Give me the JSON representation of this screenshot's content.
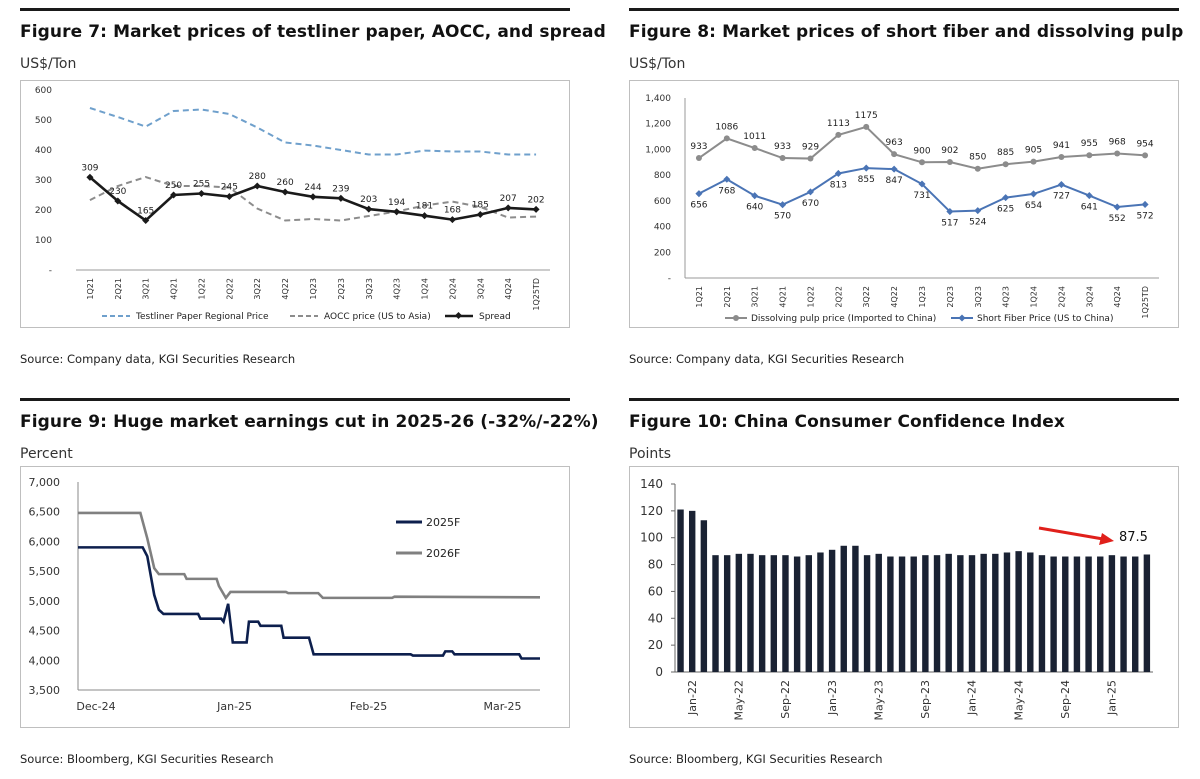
{
  "figures": [
    {
      "title": "Figure 7: Market prices of testliner paper, AOCC, and spread",
      "unit": "US$/Ton",
      "source": "Source: Company data, KGI Securities Research"
    },
    {
      "title": "Figure 8: Market prices of short fiber and dissolving pulp",
      "unit": "US$/Ton",
      "source": "Source: Company data, KGI Securities Research"
    },
    {
      "title": "Figure 9: Huge market earnings cut in 2025-26 (-32%/-22%)",
      "unit": "Percent",
      "source": "Source: Bloomberg, KGI Securities Research"
    },
    {
      "title": "Figure 10: China Consumer Confidence Index",
      "unit": "Points",
      "source": "Source: Bloomberg, KGI Securities Research"
    }
  ],
  "chart_data": [
    {
      "type": "line",
      "title": "Figure 7: Market prices of testliner paper, AOCC, and spread",
      "ylabel": "US$/Ton",
      "ylim": [
        0,
        600
      ],
      "yticks": [
        "-",
        "100",
        "200",
        "300",
        "400",
        "500",
        "600"
      ],
      "categories": [
        "1Q21",
        "2Q21",
        "3Q21",
        "4Q21",
        "1Q22",
        "2Q22",
        "3Q22",
        "4Q22",
        "1Q23",
        "2Q23",
        "3Q23",
        "4Q23",
        "1Q24",
        "2Q24",
        "3Q24",
        "4Q24",
        "1Q25TD"
      ],
      "series": [
        {
          "name": "Testliner Paper Regional Price",
          "color": "#6fa0cc",
          "values": [
            540,
            510,
            478,
            530,
            535,
            520,
            475,
            425,
            415,
            400,
            385,
            385,
            398,
            395,
            395,
            385,
            385
          ]
        },
        {
          "name": "AOCC price (US to Asia)",
          "color": "#8c8c8c",
          "values": [
            233,
            280,
            310,
            280,
            280,
            275,
            205,
            165,
            170,
            165,
            180,
            195,
            215,
            228,
            210,
            175,
            178
          ]
        },
        {
          "name": "Spread",
          "color": "#1a1a1a",
          "values": [
            309,
            230,
            165,
            250,
            255,
            245,
            280,
            260,
            244,
            239,
            203,
            194,
            181,
            168,
            185,
            207,
            202
          ]
        }
      ],
      "labels": [
        "309",
        "230",
        "165",
        "250",
        "255",
        "245",
        "280",
        "260",
        "244",
        "239",
        "203",
        "194",
        "181",
        "168",
        "185",
        "207",
        "202"
      ],
      "legend": "bottom"
    },
    {
      "type": "line",
      "title": "Figure 8: Market prices of short fiber and dissolving pulp",
      "ylabel": "US$/Ton",
      "ylim": [
        0,
        1400
      ],
      "yticks": [
        "-",
        "200",
        "400",
        "600",
        "800",
        "1,000",
        "1,200",
        "1,400"
      ],
      "categories": [
        "1Q21",
        "2Q21",
        "3Q21",
        "4Q21",
        "1Q22",
        "2Q22",
        "3Q22",
        "4Q22",
        "1Q23",
        "2Q23",
        "3Q23",
        "4Q23",
        "1Q24",
        "2Q24",
        "3Q24",
        "4Q24",
        "1Q25TD"
      ],
      "series": [
        {
          "name": "Dissolving pulp price (Imported to China)",
          "color": "#8c8c8c",
          "values": [
            933,
            1086,
            1011,
            933,
            929,
            1113,
            1175,
            963,
            900,
            902,
            850,
            885,
            905,
            941,
            955,
            968,
            954
          ],
          "labels": [
            "933",
            "1086",
            "1011",
            "933",
            "929",
            "1113",
            "1175",
            "963",
            "900",
            "902",
            "850",
            "885",
            "905",
            "941",
            "955",
            "968",
            "954"
          ]
        },
        {
          "name": "Short Fiber Price (US to China)",
          "color": "#4a74b5",
          "values": [
            656,
            768,
            640,
            570,
            670,
            813,
            855,
            847,
            731,
            517,
            524,
            625,
            654,
            727,
            641,
            552,
            572
          ],
          "labels": [
            "656",
            "768",
            "640",
            "570",
            "670",
            "813",
            "855",
            "847",
            "731",
            "517",
            "524",
            "625",
            "654",
            "727",
            "641",
            "552",
            "572"
          ]
        }
      ],
      "legend": "bottom"
    },
    {
      "type": "line",
      "title": "Figure 9: Huge market earnings cut in 2025-26 (-32%/-22%)",
      "ylabel": "Percent",
      "ylim": [
        3500,
        7000
      ],
      "yticks": [
        "3,500",
        "4,000",
        "4,500",
        "5,000",
        "5,500",
        "6,000",
        "6,500",
        "7,000"
      ],
      "xticks": [
        "Dec-24",
        "Jan-25",
        "Feb-25",
        "Mar-25"
      ],
      "x_positions": [
        0,
        0.3,
        0.59,
        0.88
      ],
      "series": [
        {
          "name": "2025F",
          "color": "#0d1f4d",
          "points": [
            [
              0,
              5900
            ],
            [
              0.14,
              5900
            ],
            [
              0.15,
              5750
            ],
            [
              0.165,
              5100
            ],
            [
              0.175,
              4850
            ],
            [
              0.185,
              4780
            ],
            [
              0.26,
              4780
            ],
            [
              0.265,
              4700
            ],
            [
              0.31,
              4700
            ],
            [
              0.315,
              4650
            ],
            [
              0.325,
              4950
            ],
            [
              0.335,
              4300
            ],
            [
              0.365,
              4300
            ],
            [
              0.37,
              4650
            ],
            [
              0.39,
              4650
            ],
            [
              0.395,
              4580
            ],
            [
              0.44,
              4580
            ],
            [
              0.445,
              4380
            ],
            [
              0.5,
              4380
            ],
            [
              0.51,
              4100
            ],
            [
              0.72,
              4100
            ],
            [
              0.725,
              4080
            ],
            [
              0.79,
              4080
            ],
            [
              0.795,
              4150
            ],
            [
              0.81,
              4150
            ],
            [
              0.815,
              4100
            ],
            [
              0.955,
              4100
            ],
            [
              0.96,
              4030
            ],
            [
              1.0,
              4030
            ]
          ]
        },
        {
          "name": "2026F",
          "color": "#808080",
          "points": [
            [
              0,
              6480
            ],
            [
              0.135,
              6480
            ],
            [
              0.15,
              6050
            ],
            [
              0.165,
              5550
            ],
            [
              0.175,
              5450
            ],
            [
              0.23,
              5450
            ],
            [
              0.235,
              5370
            ],
            [
              0.3,
              5370
            ],
            [
              0.305,
              5250
            ],
            [
              0.32,
              5050
            ],
            [
              0.33,
              5150
            ],
            [
              0.45,
              5150
            ],
            [
              0.455,
              5130
            ],
            [
              0.52,
              5130
            ],
            [
              0.53,
              5050
            ],
            [
              0.68,
              5050
            ],
            [
              0.685,
              5070
            ],
            [
              1.0,
              5060
            ]
          ]
        }
      ],
      "legend": "top-right"
    },
    {
      "type": "bar",
      "title": "Figure 10: China Consumer Confidence Index",
      "ylabel": "Points",
      "ylim": [
        0,
        140
      ],
      "yticks": [
        "0",
        "20",
        "40",
        "60",
        "80",
        "100",
        "120",
        "140"
      ],
      "xticks": [
        "Jan-22",
        "May-22",
        "Sep-22",
        "Jan-23",
        "May-23",
        "Sep-23",
        "Jan-24",
        "May-24",
        "Sep-24",
        "Jan-25"
      ],
      "values": [
        121,
        120,
        113,
        87,
        87,
        88,
        88,
        87,
        87,
        87,
        86,
        87,
        89,
        91,
        94,
        94,
        87,
        88,
        86,
        86,
        86,
        87,
        87,
        88,
        87,
        87,
        88,
        88,
        89,
        90,
        89,
        87,
        86,
        86,
        86,
        86,
        86,
        87,
        86,
        86,
        87.5
      ],
      "annotation": "87.5",
      "color": "#1a2233"
    }
  ]
}
